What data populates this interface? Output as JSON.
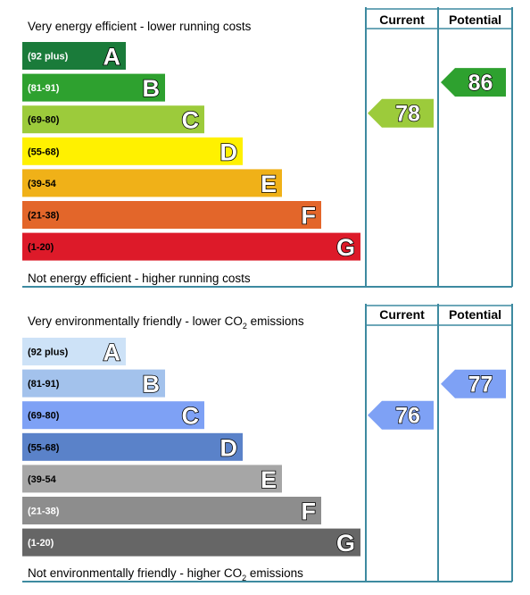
{
  "chart_data": [
    {
      "type": "bar",
      "top_caption": "Very energy efficient - lower running costs",
      "bottom_caption": "Not energy efficient - higher running costs",
      "columns": {
        "current": "Current",
        "potential": "Potential"
      },
      "bands": [
        {
          "letter": "A",
          "range": "(92 plus)",
          "color": "#1a7b3a",
          "range_color": "#ffffff"
        },
        {
          "letter": "B",
          "range": "(81-91)",
          "color": "#2ea12f",
          "range_color": "#ffffff"
        },
        {
          "letter": "C",
          "range": "(69-80)",
          "color": "#9ccb3b",
          "range_color": "#000000"
        },
        {
          "letter": "D",
          "range": "(55-68)",
          "color": "#fff100",
          "range_color": "#000000"
        },
        {
          "letter": "E",
          "range": "(39-54",
          "color": "#f0b118",
          "range_color": "#000000"
        },
        {
          "letter": "F",
          "range": "(21-38)",
          "color": "#e3662a",
          "range_color": "#000000"
        },
        {
          "letter": "G",
          "range": "(1-20)",
          "color": "#dd1a29",
          "range_color": "#000000"
        }
      ],
      "current": {
        "value": "78",
        "band": "C",
        "color": "#9ccb3b"
      },
      "potential": {
        "value": "86",
        "band": "B",
        "color": "#2ea12f"
      }
    },
    {
      "type": "bar",
      "top_caption_pre": "Very environmentally friendly - lower CO",
      "top_caption_sub": "2",
      "top_caption_post": " emissions",
      "bottom_caption_pre": "Not environmentally friendly - higher CO",
      "bottom_caption_sub": "2",
      "bottom_caption_post": " emissions",
      "columns": {
        "current": "Current",
        "potential": "Potential"
      },
      "bands": [
        {
          "letter": "A",
          "range": "(92 plus)",
          "color": "#cde2f7",
          "range_color": "#000000"
        },
        {
          "letter": "B",
          "range": "(81-91)",
          "color": "#a3c2ec",
          "range_color": "#000000"
        },
        {
          "letter": "C",
          "range": "(69-80)",
          "color": "#7ea1f5",
          "range_color": "#000000"
        },
        {
          "letter": "D",
          "range": "(55-68)",
          "color": "#5a82c9",
          "range_color": "#000000"
        },
        {
          "letter": "E",
          "range": "(39-54",
          "color": "#a6a6a6",
          "range_color": "#000000"
        },
        {
          "letter": "F",
          "range": "(21-38)",
          "color": "#8d8d8d",
          "range_color": "#ffffff"
        },
        {
          "letter": "G",
          "range": "(1-20)",
          "color": "#666666",
          "range_color": "#ffffff"
        }
      ],
      "current": {
        "value": "76",
        "band": "C",
        "color": "#7ea1f5"
      },
      "potential": {
        "value": "77",
        "band": "C",
        "color": "#7ea1f5"
      }
    }
  ]
}
